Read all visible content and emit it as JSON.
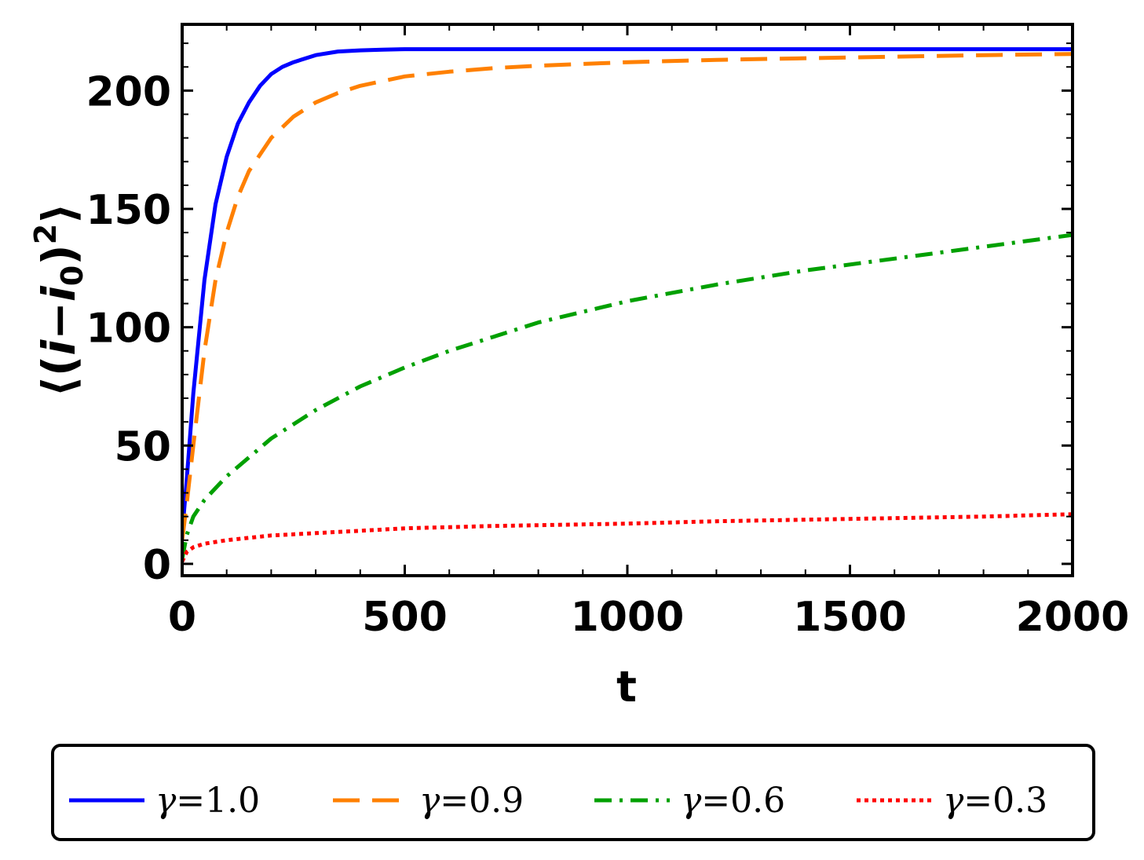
{
  "chart_data": {
    "type": "line",
    "title": "",
    "xlabel": "t",
    "ylabel_parts": [
      "⟨(",
      "i",
      "−",
      "i",
      "0",
      ")",
      "2",
      "⟩"
    ],
    "xlim": [
      0,
      2000
    ],
    "ylim": [
      -5,
      228
    ],
    "x_ticks": [
      0,
      500,
      1000,
      1500,
      2000
    ],
    "y_ticks": [
      0,
      50,
      100,
      150,
      200
    ],
    "grid": false,
    "legend_position": "bottom",
    "series": [
      {
        "name": "γ=1.0",
        "symbol": "γ",
        "value_label": "=1.0",
        "color": "#0000ff",
        "dash": "solid",
        "x": [
          0,
          10,
          25,
          50,
          75,
          100,
          125,
          150,
          175,
          200,
          225,
          250,
          300,
          350,
          400,
          450,
          500,
          600,
          800,
          1000,
          1500,
          2000
        ],
        "y": [
          13,
          35,
          72,
          120,
          152,
          172,
          186,
          195,
          202,
          207,
          210,
          212,
          215,
          216.5,
          217,
          217.3,
          217.5,
          217.5,
          217.5,
          217.5,
          217.5,
          217.5
        ]
      },
      {
        "name": "γ=0.9",
        "symbol": "γ",
        "value_label": "=0.9",
        "color": "#ff8000",
        "dash": "dashed",
        "x": [
          0,
          10,
          25,
          50,
          75,
          100,
          125,
          150,
          200,
          250,
          300,
          350,
          400,
          450,
          500,
          600,
          700,
          800,
          1000,
          1200,
          1500,
          1800,
          2000
        ],
        "y": [
          10,
          25,
          50,
          90,
          120,
          140,
          155,
          166,
          180,
          189,
          195,
          199,
          202,
          204,
          206,
          208,
          209.5,
          210.5,
          212,
          213,
          214,
          215,
          215.5
        ]
      },
      {
        "name": "γ=0.6",
        "symbol": "γ",
        "value_label": "=0.6",
        "color": "#00a000",
        "dash": "dashdot",
        "x": [
          0,
          10,
          25,
          50,
          75,
          100,
          150,
          200,
          300,
          400,
          500,
          600,
          700,
          800,
          1000,
          1200,
          1400,
          1600,
          1800,
          2000
        ],
        "y": [
          2,
          12,
          20,
          27,
          32,
          37,
          45,
          53,
          65,
          75,
          83,
          90,
          96,
          102,
          111,
          118,
          124,
          129,
          134,
          139
        ]
      },
      {
        "name": "γ=0.3",
        "symbol": "γ",
        "value_label": "=0.3",
        "color": "#ff0000",
        "dash": "dotted",
        "x": [
          0,
          10,
          25,
          50,
          100,
          200,
          300,
          400,
          500,
          700,
          1000,
          1200,
          1500,
          1800,
          2000
        ],
        "y": [
          1,
          5,
          7,
          8.5,
          10,
          12,
          13,
          14,
          15,
          16,
          17,
          18,
          19,
          20,
          21
        ]
      }
    ]
  }
}
